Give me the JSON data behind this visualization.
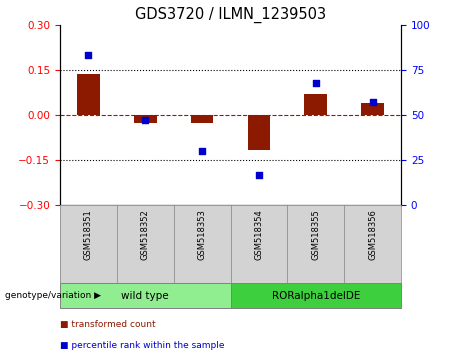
{
  "title": "GDS3720 / ILMN_1239503",
  "samples": [
    "GSM518351",
    "GSM518352",
    "GSM518353",
    "GSM518354",
    "GSM518355",
    "GSM518356"
  ],
  "red_values": [
    0.135,
    -0.028,
    -0.028,
    -0.115,
    0.07,
    0.04
  ],
  "blue_values_pct": [
    83,
    47,
    30,
    17,
    68,
    57
  ],
  "ylim_left": [
    -0.3,
    0.3
  ],
  "ylim_right": [
    0,
    100
  ],
  "yticks_left": [
    -0.3,
    -0.15,
    0,
    0.15,
    0.3
  ],
  "yticks_right": [
    0,
    25,
    50,
    75,
    100
  ],
  "hlines": [
    0.15,
    -0.15
  ],
  "groups": [
    {
      "label": "wild type",
      "indices": [
        0,
        1,
        2
      ],
      "color": "#90EE90"
    },
    {
      "label": "RORalpha1delDE",
      "indices": [
        3,
        4,
        5
      ],
      "color": "#3DCF3D"
    }
  ],
  "group_label": "genotype/variation",
  "legend_red": "transformed count",
  "legend_blue": "percentile rank within the sample",
  "bar_color": "#8B1A00",
  "blue_color": "#0000CD",
  "zero_line_color": "#CC0000",
  "bg_color": "#FFFFFF",
  "plot_bg": "#FFFFFF",
  "sample_bg": "#D3D3D3",
  "tick_label_fontsize": 7.5,
  "title_fontsize": 10.5,
  "bar_width": 0.4
}
